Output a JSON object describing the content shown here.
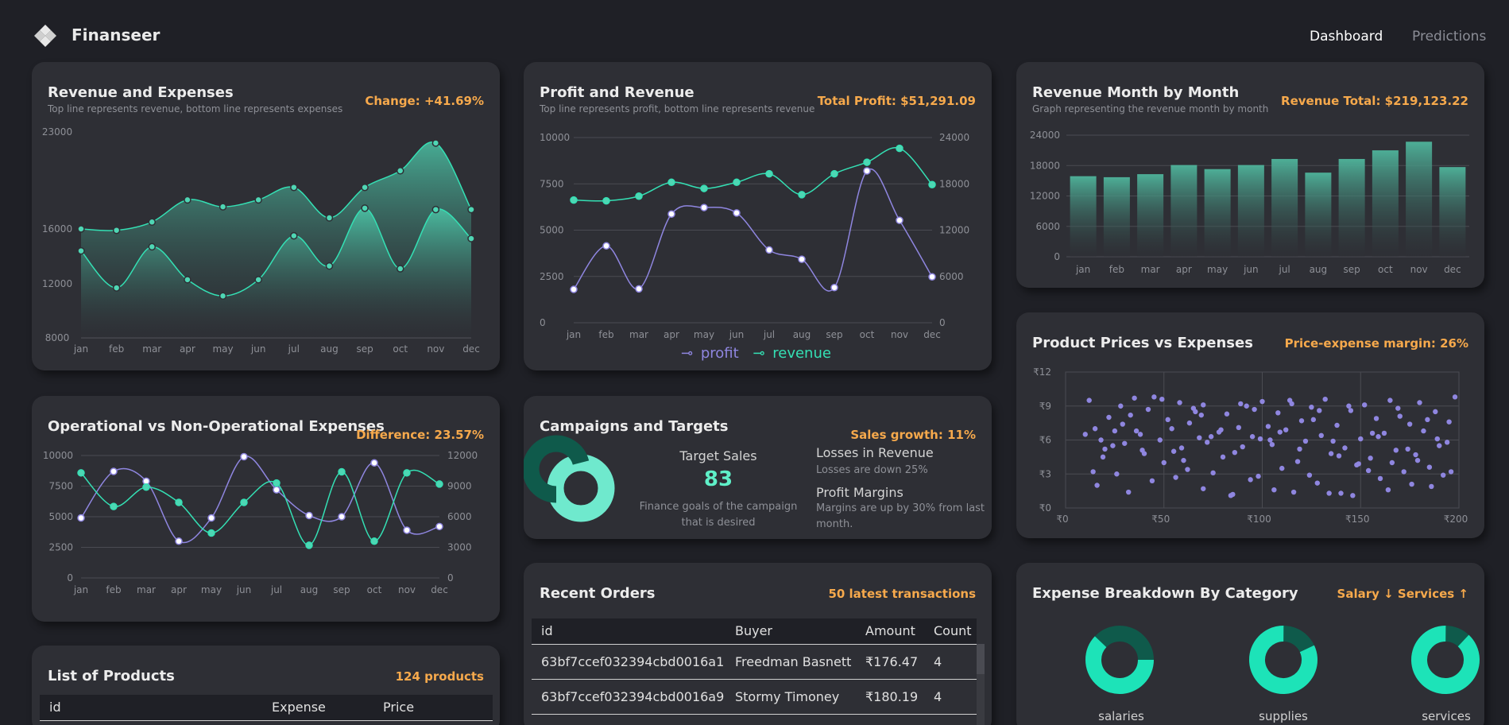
{
  "app": {
    "title": "Finanseer"
  },
  "nav": {
    "dashboard": "Dashboard",
    "predictions": "Predictions"
  },
  "colors": {
    "accent": "#34e0b4",
    "purple": "#8f86e0",
    "orange": "#f6a94c",
    "card": "#2e2f35"
  },
  "cards": {
    "rev_exp": {
      "title": "Revenue and Expenses",
      "subtitle": "Top line represents revenue, bottom line represents expenses",
      "highlight": "Change: +41.69%"
    },
    "profit_rev": {
      "title": "Profit and Revenue",
      "subtitle": "Top line represents profit, bottom line represents revenue",
      "highlight": "Total Profit: $51,291.09",
      "legend_profit": "profit",
      "legend_revenue": "revenue"
    },
    "rev_month": {
      "title": "Revenue Month by Month",
      "subtitle": "Graph representing the revenue month by month",
      "highlight": "Revenue Total: $219,123.22"
    },
    "op_nonop": {
      "title": "Operational vs Non-Operational Expenses",
      "highlight": "Difference: 23.57%"
    },
    "campaigns": {
      "title": "Campaigns and Targets",
      "highlight": "Sales growth: 11%",
      "target_label": "Target Sales",
      "target_value": "83",
      "target_desc": "Finance goals of the campaign that is desired",
      "loss_title": "Losses in Revenue",
      "loss_desc": "Losses are down 25%",
      "margin_title": "Profit Margins",
      "margin_desc": "Margins are up by 30% from last month."
    },
    "prices": {
      "title": "Product Prices vs Expenses",
      "highlight": "Price-expense margin: 26%"
    },
    "products": {
      "title": "List of Products",
      "highlight": "124 products",
      "headers": [
        "id",
        "Expense",
        "Price"
      ]
    },
    "orders": {
      "title": "Recent Orders",
      "highlight": "50 latest transactions",
      "headers": [
        "id",
        "Buyer",
        "Amount",
        "Count"
      ],
      "rows": [
        [
          "63bf7ccef032394cbd0016a1",
          "Freedman Basnett",
          "₹176.47",
          "4"
        ],
        [
          "63bf7ccef032394cbd0016a9",
          "Stormy Timoney",
          "₹180.19",
          "4"
        ]
      ]
    },
    "breakdown": {
      "title": "Expense Breakdown By Category",
      "highlight": "Salary ↓ Services ↑",
      "categories": [
        "salaries",
        "supplies",
        "services"
      ],
      "values": [
        0.62,
        0.82,
        0.88
      ]
    }
  },
  "chart_data": [
    {
      "type": "area",
      "categories": [
        "jan",
        "feb",
        "mar",
        "apr",
        "may",
        "jun",
        "jul",
        "aug",
        "sep",
        "oct",
        "nov",
        "dec"
      ],
      "series": [
        {
          "values": [
            16000,
            15900,
            16500,
            18100,
            17600,
            18100,
            19000,
            16800,
            19000,
            20200,
            22200,
            17400
          ]
        },
        {
          "values": [
            14400,
            11700,
            14700,
            12300,
            11100,
            12300,
            15500,
            13300,
            17500,
            13100,
            17400,
            15300
          ]
        }
      ],
      "yticks": [
        8000,
        12000,
        16000,
        23000
      ]
    },
    {
      "type": "line",
      "categories": [
        "jan",
        "feb",
        "mar",
        "apr",
        "may",
        "jun",
        "jul",
        "aug",
        "sep",
        "oct",
        "nov",
        "dec"
      ],
      "series": [
        {
          "name": "profit",
          "axis": "left",
          "values": [
            1800,
            4150,
            1830,
            5870,
            6220,
            5930,
            3930,
            3430,
            1900,
            8200,
            5530,
            2480
          ]
        },
        {
          "name": "revenue",
          "axis": "right",
          "values": [
            15900,
            15800,
            16400,
            18200,
            17400,
            18200,
            19300,
            16600,
            19300,
            20800,
            22600,
            17900
          ]
        }
      ],
      "yleft": [
        0,
        2500,
        5000,
        7500,
        10000
      ],
      "yright": [
        0,
        6000,
        12000,
        18000,
        24000
      ]
    },
    {
      "type": "bar",
      "categories": [
        "jan",
        "feb",
        "mar",
        "apr",
        "may",
        "jun",
        "jul",
        "aug",
        "sep",
        "oct",
        "nov",
        "dec"
      ],
      "values": [
        15900,
        15700,
        16300,
        18100,
        17300,
        18100,
        19300,
        16600,
        19300,
        21000,
        22700,
        17700
      ],
      "yticks": [
        0,
        6000,
        12000,
        18000,
        24000
      ]
    },
    {
      "type": "line",
      "categories": [
        "jan",
        "feb",
        "mar",
        "apr",
        "may",
        "jun",
        "jul",
        "aug",
        "sep",
        "oct",
        "nov",
        "dec"
      ],
      "series": [
        {
          "axis": "left",
          "values": [
            4900,
            8700,
            7900,
            3000,
            4900,
            9900,
            7200,
            5100,
            5000,
            9400,
            3900,
            4200
          ]
        },
        {
          "axis": "right",
          "values": [
            10300,
            7000,
            8900,
            7400,
            4400,
            7400,
            9300,
            3200,
            10400,
            3600,
            10300,
            9200
          ]
        }
      ],
      "yleft": [
        0,
        2500,
        5000,
        7500,
        10000
      ],
      "yright": [
        0,
        3000,
        6000,
        9000,
        12000
      ]
    },
    {
      "type": "scatter",
      "xticks": [
        "₹0",
        "₹50",
        "₹100",
        "₹150",
        "₹200"
      ],
      "yticks": [
        "₹0",
        "₹3",
        "₹6",
        "₹9",
        "₹12"
      ],
      "points": [
        [
          12,
          9.5
        ],
        [
          15,
          7
        ],
        [
          18,
          6
        ],
        [
          20,
          5.2
        ],
        [
          22,
          8
        ],
        [
          25,
          6.8
        ],
        [
          28,
          9
        ],
        [
          30,
          5.7
        ],
        [
          33,
          8.2
        ],
        [
          35,
          9.7
        ],
        [
          38,
          6.5
        ],
        [
          40,
          4.8
        ],
        [
          42,
          8.7
        ],
        [
          45,
          9.8
        ],
        [
          48,
          6
        ],
        [
          52,
          7.8
        ],
        [
          55,
          5
        ],
        [
          58,
          9.3
        ],
        [
          60,
          4.2
        ],
        [
          63,
          7.5
        ],
        [
          65,
          8.8
        ],
        [
          68,
          6.2
        ],
        [
          70,
          9.1
        ],
        [
          72,
          5.8
        ],
        [
          75,
          3.1
        ],
        [
          78,
          6.7
        ],
        [
          80,
          4.5
        ],
        [
          82,
          8.3
        ],
        [
          85,
          1.2
        ],
        [
          88,
          7.1
        ],
        [
          90,
          5.4
        ],
        [
          92,
          9
        ],
        [
          95,
          6.3
        ],
        [
          98,
          2.8
        ],
        [
          100,
          9.4
        ],
        [
          103,
          7.2
        ],
        [
          105,
          5.6
        ],
        [
          108,
          8.4
        ],
        [
          110,
          3.5
        ],
        [
          112,
          6.9
        ],
        [
          115,
          9.2
        ],
        [
          118,
          4.1
        ],
        [
          120,
          7.7
        ],
        [
          122,
          5.9
        ],
        [
          125,
          8.9
        ],
        [
          128,
          2.2
        ],
        [
          130,
          6.4
        ],
        [
          132,
          9.6
        ],
        [
          135,
          4.8
        ],
        [
          138,
          7.3
        ],
        [
          140,
          1.3
        ],
        [
          142,
          5.3
        ],
        [
          145,
          8.6
        ],
        [
          148,
          3.8
        ],
        [
          150,
          6.1
        ],
        [
          152,
          9.1
        ],
        [
          155,
          4.4
        ],
        [
          158,
          7.9
        ],
        [
          160,
          2.6
        ],
        [
          162,
          6.6
        ],
        [
          165,
          9.5
        ],
        [
          168,
          5.1
        ],
        [
          170,
          8.1
        ],
        [
          172,
          3.2
        ],
        [
          175,
          7.4
        ],
        [
          178,
          4.7
        ],
        [
          180,
          9.3
        ],
        [
          182,
          6.8
        ],
        [
          185,
          3.6
        ],
        [
          188,
          8.5
        ],
        [
          190,
          5.5
        ],
        [
          192,
          2.9
        ],
        [
          195,
          7.6
        ],
        [
          198,
          9.8
        ],
        [
          14,
          3.2
        ],
        [
          16,
          2
        ],
        [
          26,
          3
        ],
        [
          32,
          1.4
        ],
        [
          44,
          2.4
        ],
        [
          50,
          4
        ],
        [
          56,
          2.7
        ],
        [
          62,
          3.4
        ],
        [
          70,
          1.7
        ],
        [
          84,
          1.1
        ],
        [
          94,
          2.5
        ],
        [
          106,
          1.6
        ],
        [
          116,
          1.4
        ],
        [
          124,
          2.9
        ],
        [
          134,
          1.3
        ],
        [
          146,
          1.1
        ],
        [
          154,
          3.3
        ],
        [
          164,
          1.6
        ],
        [
          176,
          2.1
        ],
        [
          186,
          1.9
        ],
        [
          196,
          3.2
        ],
        [
          24,
          5.5
        ],
        [
          36,
          6.8
        ],
        [
          54,
          7
        ],
        [
          66,
          8.5
        ],
        [
          74,
          6.3
        ],
        [
          86,
          4.9
        ],
        [
          96,
          8.7
        ],
        [
          104,
          6
        ],
        [
          114,
          9.5
        ],
        [
          126,
          7.8
        ],
        [
          136,
          5.9
        ],
        [
          144,
          9
        ],
        [
          156,
          6.6
        ],
        [
          166,
          4
        ],
        [
          174,
          5.2
        ],
        [
          184,
          7.8
        ],
        [
          194,
          5.8
        ],
        [
          10,
          6.5
        ],
        [
          19,
          4.5
        ],
        [
          29,
          7.4
        ],
        [
          39,
          5.1
        ],
        [
          49,
          9.6
        ],
        [
          59,
          5.3
        ],
        [
          69,
          8.2
        ],
        [
          79,
          6.9
        ],
        [
          89,
          9.2
        ],
        [
          99,
          6.1
        ],
        [
          109,
          6.7
        ],
        [
          119,
          5.2
        ],
        [
          129,
          8.6
        ],
        [
          139,
          4.6
        ],
        [
          149,
          3.9
        ],
        [
          159,
          6.3
        ],
        [
          169,
          8.8
        ],
        [
          179,
          4.2
        ],
        [
          189,
          6.1
        ]
      ]
    },
    {
      "type": "pie",
      "categories": [
        "salaries",
        "supplies",
        "services"
      ],
      "values": [
        0.62,
        0.82,
        0.88
      ]
    }
  ]
}
